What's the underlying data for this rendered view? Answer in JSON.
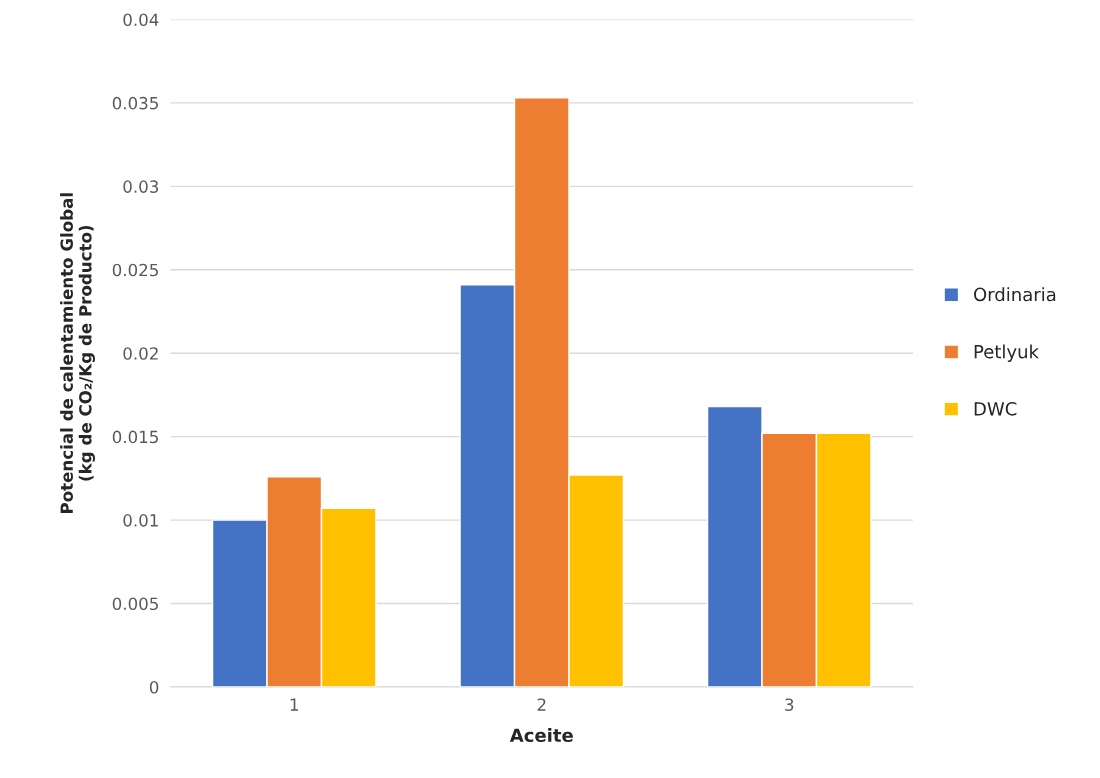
{
  "chart_data": {
    "type": "bar",
    "categories": [
      "1",
      "2",
      "3"
    ],
    "series": [
      {
        "name": "Ordinaria",
        "color": "#4472c4",
        "values": [
          0.01,
          0.0241,
          0.0168
        ]
      },
      {
        "name": "Petlyuk",
        "color": "#ed7d31",
        "values": [
          0.0126,
          0.0353,
          0.0152
        ]
      },
      {
        "name": "DWC",
        "color": "#ffc000",
        "values": [
          0.0107,
          0.0127,
          0.0152
        ]
      }
    ],
    "xlabel": "Aceite",
    "ylabel": "Potencial de calentamiento Global\n(kg de CO₂/Kg de Producto)",
    "ylim": [
      0,
      0.04
    ],
    "yticks": [
      0,
      0.005,
      0.01,
      0.015,
      0.02,
      0.025,
      0.03,
      0.035,
      0.04
    ],
    "grid": "y",
    "legend": "right"
  }
}
